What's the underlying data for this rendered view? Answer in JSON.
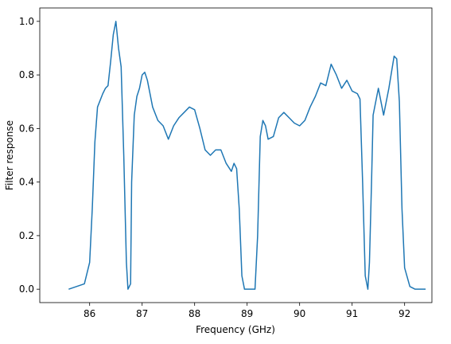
{
  "chart_data": {
    "type": "line",
    "x_label": "Frequency (GHz)",
    "y_label": "Filter response",
    "xlim": [
      85.05,
      92.52
    ],
    "ylim": [
      -0.05,
      1.05
    ],
    "xticks": [
      86,
      87,
      88,
      89,
      90,
      91,
      92
    ],
    "yticks": [
      {
        "value": 0,
        "label": "0.0"
      },
      0.2,
      0.4,
      0.6,
      0.8,
      {
        "value": 1,
        "label": "1.0"
      }
    ],
    "x": [
      85.6,
      85.9,
      86.0,
      86.05,
      86.1,
      86.15,
      86.25,
      86.3,
      86.35,
      86.4,
      86.45,
      86.5,
      86.55,
      86.6,
      86.65,
      86.7,
      86.73,
      86.78,
      86.8,
      86.85,
      86.9,
      86.95,
      87.0,
      87.05,
      87.1,
      87.2,
      87.3,
      87.4,
      87.5,
      87.6,
      87.7,
      87.8,
      87.9,
      88.0,
      88.1,
      88.2,
      88.3,
      88.4,
      88.5,
      88.6,
      88.7,
      88.75,
      88.8,
      88.85,
      88.9,
      88.95,
      89.15,
      89.2,
      89.25,
      89.3,
      89.35,
      89.4,
      89.5,
      89.6,
      89.7,
      89.8,
      89.9,
      90.0,
      90.1,
      90.2,
      90.3,
      90.4,
      90.5,
      90.6,
      90.7,
      90.8,
      90.9,
      91.0,
      91.1,
      91.15,
      91.2,
      91.25,
      91.3,
      91.33,
      91.37,
      91.4,
      91.5,
      91.6,
      91.7,
      91.8,
      91.85,
      91.9,
      91.95,
      92.0,
      92.1,
      92.2,
      92.4
    ],
    "series": [
      {
        "color": "#1f77b4",
        "values": [
          0,
          0.02,
          0.1,
          0.3,
          0.55,
          0.68,
          0.73,
          0.75,
          0.76,
          0.85,
          0.95,
          1.0,
          0.9,
          0.83,
          0.5,
          0.1,
          0.0,
          0.02,
          0.4,
          0.65,
          0.72,
          0.75,
          0.8,
          0.81,
          0.78,
          0.68,
          0.63,
          0.61,
          0.56,
          0.61,
          0.64,
          0.66,
          0.68,
          0.67,
          0.6,
          0.52,
          0.5,
          0.52,
          0.52,
          0.47,
          0.44,
          0.47,
          0.45,
          0.3,
          0.05,
          0.0,
          0.0,
          0.2,
          0.57,
          0.63,
          0.61,
          0.56,
          0.57,
          0.64,
          0.66,
          0.64,
          0.62,
          0.61,
          0.63,
          0.68,
          0.72,
          0.77,
          0.76,
          0.84,
          0.8,
          0.75,
          0.78,
          0.74,
          0.73,
          0.71,
          0.4,
          0.05,
          0.0,
          0.1,
          0.4,
          0.65,
          0.75,
          0.65,
          0.75,
          0.87,
          0.86,
          0.7,
          0.3,
          0.08,
          0.01,
          0.0,
          0.0
        ]
      }
    ]
  }
}
